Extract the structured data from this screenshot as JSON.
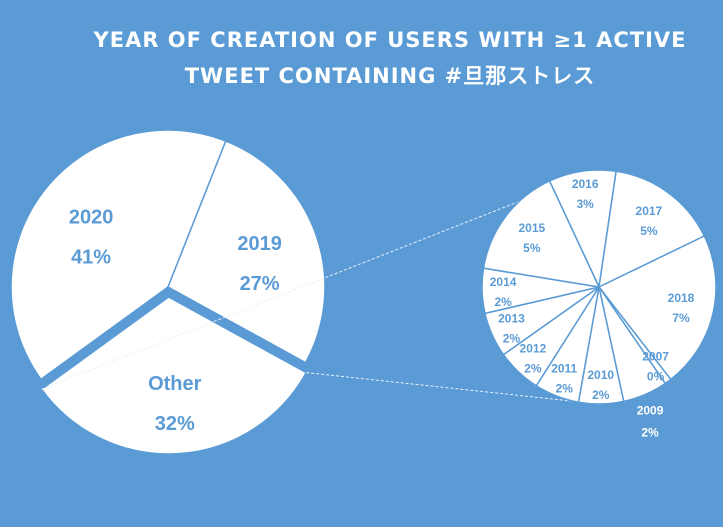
{
  "title_lines": [
    "YEAR OF CREATION OF USERS WITH ≥1 ACTIVE",
    "TWEET CONTAINING #旦那ストレス"
  ],
  "colors": {
    "background": "#5B9BD5",
    "slice_fill": "#ffffff",
    "label": "#5B9BD5"
  },
  "chart_data": {
    "type": "pie",
    "subtype": "pie-of-pie",
    "title": "YEAR OF CREATION OF USERS WITH ≥1 ACTIVE TWEET CONTAINING #旦那ストレス",
    "main_pie": [
      {
        "label": "2020",
        "value": 41,
        "value_label": "41%"
      },
      {
        "label": "2019",
        "value": 27,
        "value_label": "27%"
      },
      {
        "label": "Other",
        "value": 32,
        "value_label": "32%"
      }
    ],
    "secondary_pie": [
      {
        "label": "2016",
        "value": 3,
        "value_label": "3%"
      },
      {
        "label": "2017",
        "value": 5,
        "value_label": "5%"
      },
      {
        "label": "2018",
        "value": 7,
        "value_label": "7%"
      },
      {
        "label": "2007",
        "value": 0.3,
        "value_label": "0%"
      },
      {
        "label": "2009",
        "value": 2,
        "value_label": "2%"
      },
      {
        "label": "2010",
        "value": 2,
        "value_label": "2%"
      },
      {
        "label": "2011",
        "value": 2,
        "value_label": "2%"
      },
      {
        "label": "2012",
        "value": 2,
        "value_label": "2%"
      },
      {
        "label": "2013",
        "value": 2,
        "value_label": "2%"
      },
      {
        "label": "2014",
        "value": 2,
        "value_label": "2%"
      },
      {
        "label": "2015",
        "value": 5,
        "value_label": "5%"
      }
    ]
  }
}
